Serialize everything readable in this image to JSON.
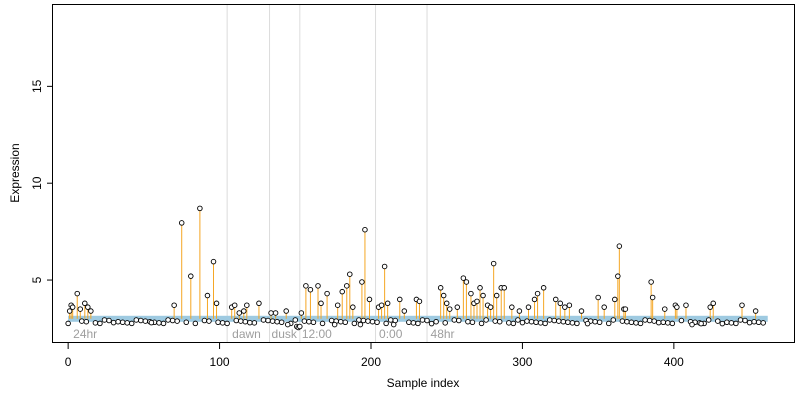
{
  "chart_data": {
    "type": "scatter",
    "xlabel": "Sample index",
    "ylabel": "Expression",
    "xlim": [
      -10,
      480
    ],
    "ylim": [
      1.75,
      19.2
    ],
    "x_ticks": [
      0,
      100,
      200,
      300,
      400
    ],
    "y_ticks": [
      5,
      10,
      15
    ],
    "baseline": 3.0,
    "colors": {
      "stem": "#f5a623",
      "baseline_band": "#9ecae1",
      "point_edge": "#000000",
      "divider": "#dcdcdc",
      "period_label": "#9e9e9e"
    },
    "period_dividers": [
      105,
      133,
      153,
      203,
      237
    ],
    "period_labels": [
      {
        "label": "24hr",
        "x": 2
      },
      {
        "label": "dawn",
        "x": 107
      },
      {
        "label": "dusk",
        "x": 133
      },
      {
        "label": "12:00",
        "x": 153
      },
      {
        "label": "0:00",
        "x": 204
      },
      {
        "label": "48hr",
        "x": 238
      }
    ],
    "peaks": [
      {
        "x": 1,
        "y": 3.4
      },
      {
        "x": 2,
        "y": 3.7
      },
      {
        "x": 3,
        "y": 3.6
      },
      {
        "x": 6,
        "y": 4.3
      },
      {
        "x": 8,
        "y": 3.5
      },
      {
        "x": 11,
        "y": 3.8
      },
      {
        "x": 13,
        "y": 3.6
      },
      {
        "x": 15,
        "y": 3.4
      },
      {
        "x": 70,
        "y": 3.7
      },
      {
        "x": 75,
        "y": 7.95
      },
      {
        "x": 81,
        "y": 5.2
      },
      {
        "x": 87,
        "y": 8.7
      },
      {
        "x": 92,
        "y": 4.2
      },
      {
        "x": 96,
        "y": 5.95
      },
      {
        "x": 98,
        "y": 3.8
      },
      {
        "x": 108,
        "y": 3.6
      },
      {
        "x": 110,
        "y": 3.7
      },
      {
        "x": 113,
        "y": 3.3
      },
      {
        "x": 116,
        "y": 3.4
      },
      {
        "x": 118,
        "y": 3.7
      },
      {
        "x": 126,
        "y": 3.8
      },
      {
        "x": 134,
        "y": 3.3
      },
      {
        "x": 137,
        "y": 3.3
      },
      {
        "x": 144,
        "y": 3.4
      },
      {
        "x": 154,
        "y": 3.3
      },
      {
        "x": 157,
        "y": 4.7
      },
      {
        "x": 160,
        "y": 4.5
      },
      {
        "x": 165,
        "y": 4.7
      },
      {
        "x": 167,
        "y": 3.8
      },
      {
        "x": 171,
        "y": 4.3
      },
      {
        "x": 178,
        "y": 3.7
      },
      {
        "x": 181,
        "y": 4.4
      },
      {
        "x": 184,
        "y": 4.7
      },
      {
        "x": 186,
        "y": 5.3
      },
      {
        "x": 188,
        "y": 3.6
      },
      {
        "x": 194,
        "y": 4.9
      },
      {
        "x": 196,
        "y": 7.6
      },
      {
        "x": 199,
        "y": 4.0
      },
      {
        "x": 205,
        "y": 3.6
      },
      {
        "x": 207,
        "y": 3.7
      },
      {
        "x": 209,
        "y": 5.7
      },
      {
        "x": 211,
        "y": 3.8
      },
      {
        "x": 219,
        "y": 4.0
      },
      {
        "x": 222,
        "y": 3.4
      },
      {
        "x": 230,
        "y": 4.0
      },
      {
        "x": 232,
        "y": 3.9
      },
      {
        "x": 246,
        "y": 4.6
      },
      {
        "x": 248,
        "y": 4.2
      },
      {
        "x": 250,
        "y": 3.8
      },
      {
        "x": 252,
        "y": 3.5
      },
      {
        "x": 257,
        "y": 3.6
      },
      {
        "x": 261,
        "y": 5.1
      },
      {
        "x": 263,
        "y": 4.9
      },
      {
        "x": 266,
        "y": 4.3
      },
      {
        "x": 268,
        "y": 3.8
      },
      {
        "x": 270,
        "y": 3.9
      },
      {
        "x": 272,
        "y": 4.6
      },
      {
        "x": 274,
        "y": 4.2
      },
      {
        "x": 277,
        "y": 3.7
      },
      {
        "x": 279,
        "y": 3.6
      },
      {
        "x": 281,
        "y": 5.85
      },
      {
        "x": 283,
        "y": 4.2
      },
      {
        "x": 286,
        "y": 4.6
      },
      {
        "x": 288,
        "y": 4.6
      },
      {
        "x": 293,
        "y": 3.6
      },
      {
        "x": 298,
        "y": 3.4
      },
      {
        "x": 304,
        "y": 3.6
      },
      {
        "x": 308,
        "y": 4.0
      },
      {
        "x": 310,
        "y": 4.3
      },
      {
        "x": 314,
        "y": 4.6
      },
      {
        "x": 322,
        "y": 4.0
      },
      {
        "x": 325,
        "y": 3.8
      },
      {
        "x": 328,
        "y": 3.6
      },
      {
        "x": 331,
        "y": 3.7
      },
      {
        "x": 339,
        "y": 3.4
      },
      {
        "x": 350,
        "y": 4.1
      },
      {
        "x": 354,
        "y": 3.6
      },
      {
        "x": 361,
        "y": 4.0
      },
      {
        "x": 363,
        "y": 5.2
      },
      {
        "x": 364,
        "y": 6.75
      },
      {
        "x": 367,
        "y": 3.5
      },
      {
        "x": 368,
        "y": 3.5
      },
      {
        "x": 385,
        "y": 4.9
      },
      {
        "x": 386,
        "y": 4.1
      },
      {
        "x": 394,
        "y": 3.5
      },
      {
        "x": 401,
        "y": 3.7
      },
      {
        "x": 402,
        "y": 3.6
      },
      {
        "x": 408,
        "y": 3.7
      },
      {
        "x": 424,
        "y": 3.6
      },
      {
        "x": 426,
        "y": 3.8
      },
      {
        "x": 445,
        "y": 3.7
      },
      {
        "x": 454,
        "y": 3.4
      }
    ],
    "dips": [
      {
        "x": 30,
        "y": 2.8
      },
      {
        "x": 55,
        "y": 2.8
      },
      {
        "x": 120,
        "y": 2.8
      },
      {
        "x": 145,
        "y": 2.7
      },
      {
        "x": 151,
        "y": 2.6
      },
      {
        "x": 152,
        "y": 2.55
      },
      {
        "x": 153,
        "y": 2.6
      },
      {
        "x": 176,
        "y": 2.7
      },
      {
        "x": 193,
        "y": 2.7
      },
      {
        "x": 215,
        "y": 2.7
      },
      {
        "x": 240,
        "y": 2.75
      },
      {
        "x": 300,
        "y": 2.8
      },
      {
        "x": 343,
        "y": 2.75
      },
      {
        "x": 390,
        "y": 2.8
      },
      {
        "x": 412,
        "y": 2.7
      },
      {
        "x": 418,
        "y": 2.75
      },
      {
        "x": 432,
        "y": 2.75
      },
      {
        "x": 450,
        "y": 2.8
      }
    ],
    "n_samples": 462
  }
}
